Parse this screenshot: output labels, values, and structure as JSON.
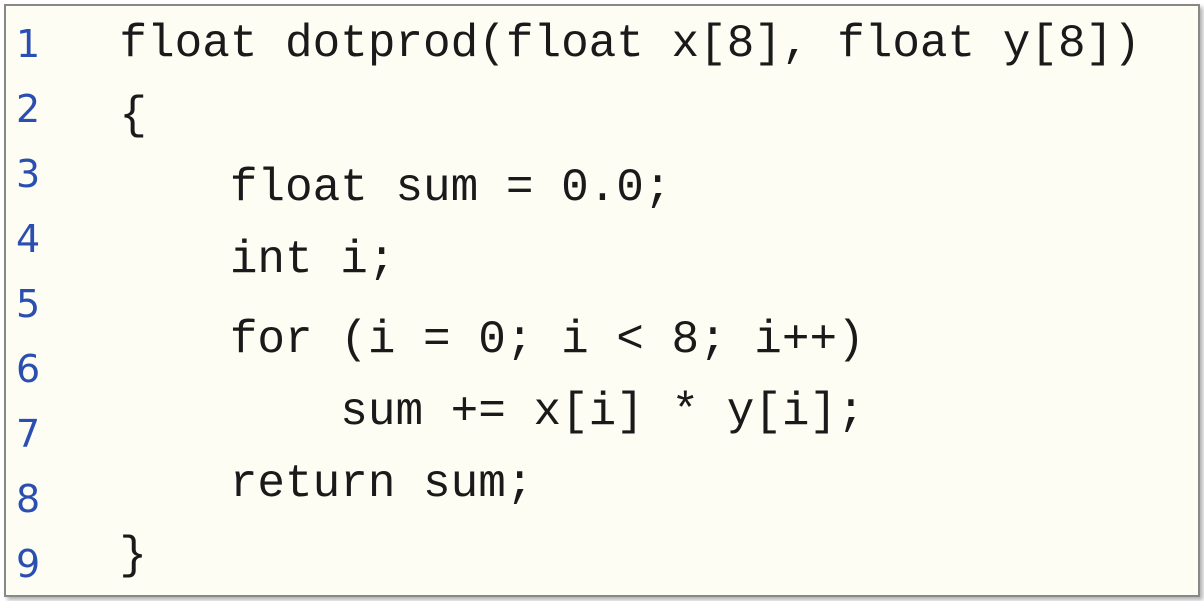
{
  "type": "code-listing",
  "background_color": "#fdfdf4",
  "border_color": "#888888",
  "outer_background": "#ffffff",
  "line_number_color": "#2a4fb1",
  "code_text_color": "#1a1a1a",
  "line_number_font": "sans-serif",
  "code_font": "Courier, monospace",
  "line_number_fontsize": 38,
  "code_fontsize": 46,
  "line_height": 65,
  "shadow": true,
  "total_lines": 9,
  "indent_unit": "    ",
  "lines": [
    {
      "n": "1",
      "text": "  float dotprod(float x[8], float y[8])"
    },
    {
      "n": "2",
      "text": "  {"
    },
    {
      "n": "3",
      "text": "      float sum = 0.0;"
    },
    {
      "n": "4",
      "text": "      int i;"
    },
    {
      "n": "5",
      "text": ""
    },
    {
      "n": "6",
      "text": "      for (i = 0; i < 8; i++)"
    },
    {
      "n": "7",
      "text": "          sum += x[i] * y[i];"
    },
    {
      "n": "8",
      "text": "      return sum;"
    },
    {
      "n": "9",
      "text": "  }"
    }
  ]
}
